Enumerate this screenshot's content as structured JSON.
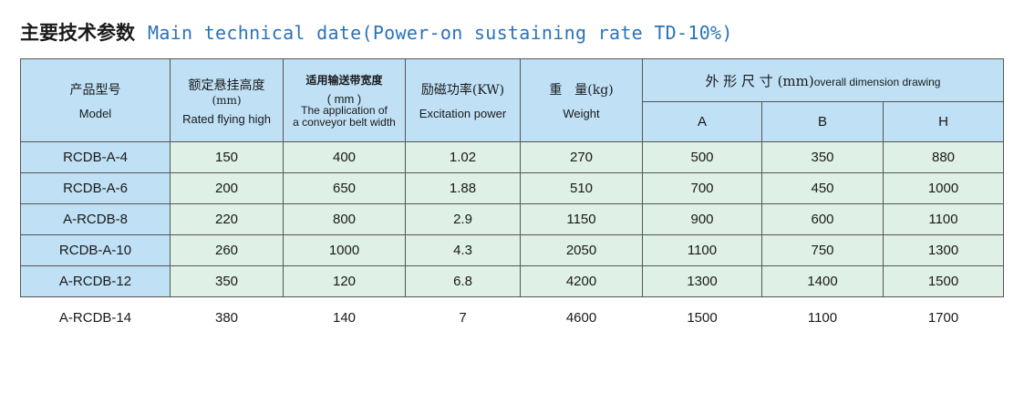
{
  "heading": {
    "zh": "主要技术参数",
    "en": "Main technical date(Power-on sustaining rate TD-10%)"
  },
  "table": {
    "headers": {
      "model_zh": "产品型号",
      "model_en": "Model",
      "height_zh": "额定悬挂高度",
      "height_unit": "(mm)",
      "height_en": "Rated flying high",
      "belt_zh": "适用输送带宽度",
      "belt_unit": "( mm )",
      "belt_en_1": "The application of",
      "belt_en_2": "a conveyor belt width",
      "power_zh": "励磁功率(KW)",
      "power_en": "Excitation power",
      "weight_zh": "重　量(kg)",
      "weight_en": "Weight",
      "dim_zh": "外 形 尺 寸 (mm)",
      "dim_en": "overall dimension drawing",
      "dim_a": "A",
      "dim_b": "B",
      "dim_h": "H"
    },
    "rows": [
      {
        "model": "RCDB-A-4",
        "height": "150",
        "belt": "400",
        "power": "1.02",
        "weight": "270",
        "a": "500",
        "b": "350",
        "h": "880"
      },
      {
        "model": "RCDB-A-6",
        "height": "200",
        "belt": "650",
        "power": "1.88",
        "weight": "510",
        "a": "700",
        "b": "450",
        "h": "1000"
      },
      {
        "model": "A-RCDB-8",
        "height": "220",
        "belt": "800",
        "power": "2.9",
        "weight": "1150",
        "a": "900",
        "b": "600",
        "h": "1100"
      },
      {
        "model": "RCDB-A-10",
        "height": "260",
        "belt": "1000",
        "power": "4.3",
        "weight": "2050",
        "a": "1100",
        "b": "750",
        "h": "1300"
      },
      {
        "model": "A-RCDB-12",
        "height": "350",
        "belt": "120",
        "power": "6.8",
        "weight": "4200",
        "a": "1300",
        "b": "1400",
        "h": "1500"
      },
      {
        "model": "A-RCDB-14",
        "height": "380",
        "belt": "140",
        "power": "7",
        "weight": "4600",
        "a": "1500",
        "b": "1100",
        "h": "1700"
      }
    ]
  },
  "colors": {
    "header_bg": "#bfe0f5",
    "cell_bg": "#dff0e6",
    "heading_en": "#2a73b8"
  }
}
